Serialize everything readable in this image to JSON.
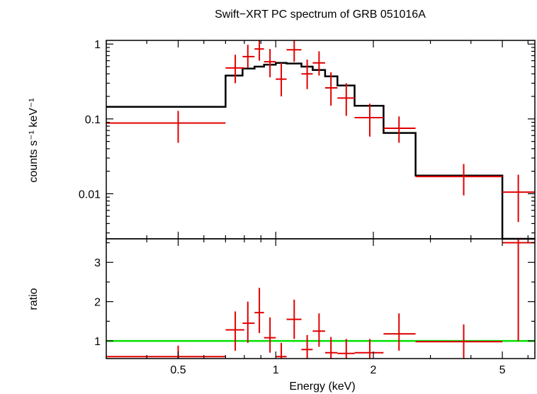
{
  "chart_data": [
    {
      "type": "step+errorbar",
      "title": "Swift−XRT PC spectrum of GRB 051016A",
      "ylabel": "counts s⁻¹ keV⁻¹",
      "yscale": "log",
      "xscale": "log",
      "xlim": [
        0.3,
        6.3
      ],
      "ylim": [
        0.0025,
        1.12
      ],
      "y_ticks": [
        {
          "value": 1,
          "label": "1"
        },
        {
          "value": 0.1,
          "label": "0.1"
        },
        {
          "value": 0.01,
          "label": "0.01"
        }
      ],
      "colors": {
        "data": "#e00000",
        "model": "#000000"
      },
      "data_points": [
        {
          "x": 0.5,
          "xlo": 0.3,
          "xhi": 0.7,
          "y": 0.088,
          "ylo": 0.048,
          "yhi": 0.128
        },
        {
          "x": 0.75,
          "xlo": 0.7,
          "xhi": 0.8,
          "y": 0.48,
          "ylo": 0.3,
          "yhi": 0.72
        },
        {
          "x": 0.82,
          "xlo": 0.79,
          "xhi": 0.86,
          "y": 0.68,
          "ylo": 0.48,
          "yhi": 0.98
        },
        {
          "x": 0.89,
          "xlo": 0.86,
          "xhi": 0.92,
          "y": 0.86,
          "ylo": 0.6,
          "yhi": 1.12
        },
        {
          "x": 0.96,
          "xlo": 0.92,
          "xhi": 1.0,
          "y": 0.58,
          "ylo": 0.36,
          "yhi": 0.86
        },
        {
          "x": 1.04,
          "xlo": 1.0,
          "xhi": 1.08,
          "y": 0.34,
          "ylo": 0.2,
          "yhi": 0.56
        },
        {
          "x": 1.14,
          "xlo": 1.08,
          "xhi": 1.2,
          "y": 0.84,
          "ylo": 0.58,
          "yhi": 1.12
        },
        {
          "x": 1.25,
          "xlo": 1.2,
          "xhi": 1.3,
          "y": 0.4,
          "ylo": 0.25,
          "yhi": 0.62
        },
        {
          "x": 1.36,
          "xlo": 1.3,
          "xhi": 1.42,
          "y": 0.56,
          "ylo": 0.38,
          "yhi": 0.8
        },
        {
          "x": 1.48,
          "xlo": 1.42,
          "xhi": 1.55,
          "y": 0.26,
          "ylo": 0.15,
          "yhi": 0.42
        },
        {
          "x": 1.65,
          "xlo": 1.55,
          "xhi": 1.75,
          "y": 0.19,
          "ylo": 0.11,
          "yhi": 0.3
        },
        {
          "x": 1.95,
          "xlo": 1.75,
          "xhi": 2.15,
          "y": 0.104,
          "ylo": 0.058,
          "yhi": 0.16
        },
        {
          "x": 2.4,
          "xlo": 2.15,
          "xhi": 2.7,
          "y": 0.075,
          "ylo": 0.048,
          "yhi": 0.108
        },
        {
          "x": 3.8,
          "xlo": 2.7,
          "xhi": 5.0,
          "y": 0.017,
          "ylo": 0.0095,
          "yhi": 0.025
        },
        {
          "x": 5.6,
          "xlo": 5.0,
          "xhi": 6.3,
          "y": 0.0105,
          "ylo": 0.0042,
          "yhi": 0.018
        }
      ],
      "model_steps": [
        {
          "xlo": 0.3,
          "xhi": 0.7,
          "y": 0.145
        },
        {
          "xlo": 0.7,
          "xhi": 0.79,
          "y": 0.38
        },
        {
          "xlo": 0.79,
          "xhi": 0.86,
          "y": 0.47
        },
        {
          "xlo": 0.86,
          "xhi": 0.92,
          "y": 0.5
        },
        {
          "xlo": 0.92,
          "xhi": 1.0,
          "y": 0.53
        },
        {
          "xlo": 1.0,
          "xhi": 1.08,
          "y": 0.56
        },
        {
          "xlo": 1.08,
          "xhi": 1.2,
          "y": 0.55
        },
        {
          "xlo": 1.2,
          "xhi": 1.3,
          "y": 0.5
        },
        {
          "xlo": 1.3,
          "xhi": 1.42,
          "y": 0.45
        },
        {
          "xlo": 1.42,
          "xhi": 1.55,
          "y": 0.37
        },
        {
          "xlo": 1.55,
          "xhi": 1.75,
          "y": 0.28
        },
        {
          "xlo": 1.75,
          "xhi": 2.15,
          "y": 0.15
        },
        {
          "xlo": 2.15,
          "xhi": 2.7,
          "y": 0.065
        },
        {
          "xlo": 2.7,
          "xhi": 5.0,
          "y": 0.0175
        },
        {
          "xlo": 5.0,
          "xhi": 6.3,
          "y": 0.0025
        }
      ]
    },
    {
      "type": "errorbar+line",
      "xlabel": "Energy (keV)",
      "ylabel": "ratio",
      "xscale": "log",
      "xlim": [
        0.3,
        6.3
      ],
      "ylim": [
        0.55,
        3.6
      ],
      "y_ticks": [
        {
          "value": 1,
          "label": "1"
        },
        {
          "value": 2,
          "label": "2"
        },
        {
          "value": 3,
          "label": "3"
        }
      ],
      "x_ticks": [
        {
          "value": 0.5,
          "label": "0.5"
        },
        {
          "value": 1,
          "label": "1"
        },
        {
          "value": 2,
          "label": "2"
        },
        {
          "value": 5,
          "label": "5"
        }
      ],
      "reference_line": {
        "y": 1,
        "color": "#00e000"
      },
      "colors": {
        "data": "#e00000"
      },
      "data_points": [
        {
          "x": 0.5,
          "xlo": 0.3,
          "xhi": 0.7,
          "y": 0.6,
          "ylo": 0.4,
          "yhi": 0.88
        },
        {
          "x": 0.75,
          "xlo": 0.7,
          "xhi": 0.8,
          "y": 1.28,
          "ylo": 0.75,
          "yhi": 1.75
        },
        {
          "x": 0.82,
          "xlo": 0.79,
          "xhi": 0.86,
          "y": 1.45,
          "ylo": 0.95,
          "yhi": 2.0
        },
        {
          "x": 0.89,
          "xlo": 0.86,
          "xhi": 0.92,
          "y": 1.72,
          "ylo": 1.2,
          "yhi": 2.35
        },
        {
          "x": 0.96,
          "xlo": 0.92,
          "xhi": 1.0,
          "y": 1.08,
          "ylo": 0.7,
          "yhi": 1.6
        },
        {
          "x": 1.04,
          "xlo": 1.0,
          "xhi": 1.08,
          "y": 0.6,
          "ylo": 0.35,
          "yhi": 0.95
        },
        {
          "x": 1.14,
          "xlo": 1.08,
          "xhi": 1.2,
          "y": 1.55,
          "ylo": 1.05,
          "yhi": 2.05
        },
        {
          "x": 1.25,
          "xlo": 1.2,
          "xhi": 1.3,
          "y": 0.78,
          "ylo": 0.5,
          "yhi": 1.15
        },
        {
          "x": 1.36,
          "xlo": 1.3,
          "xhi": 1.42,
          "y": 1.25,
          "ylo": 0.85,
          "yhi": 1.7
        },
        {
          "x": 1.48,
          "xlo": 1.42,
          "xhi": 1.55,
          "y": 0.7,
          "ylo": 0.4,
          "yhi": 1.1
        },
        {
          "x": 1.65,
          "xlo": 1.55,
          "xhi": 1.75,
          "y": 0.68,
          "ylo": 0.4,
          "yhi": 1.05
        },
        {
          "x": 1.95,
          "xlo": 1.75,
          "xhi": 2.15,
          "y": 0.7,
          "ylo": 0.4,
          "yhi": 1.05
        },
        {
          "x": 2.4,
          "xlo": 2.15,
          "xhi": 2.7,
          "y": 1.18,
          "ylo": 0.75,
          "yhi": 1.7
        },
        {
          "x": 3.8,
          "xlo": 2.7,
          "xhi": 5.0,
          "y": 0.98,
          "ylo": 0.55,
          "yhi": 1.42
        },
        {
          "x": 5.6,
          "xlo": 5.0,
          "xhi": 6.3,
          "y": 3.5,
          "ylo": 1.0,
          "yhi": 5.0
        }
      ]
    }
  ]
}
